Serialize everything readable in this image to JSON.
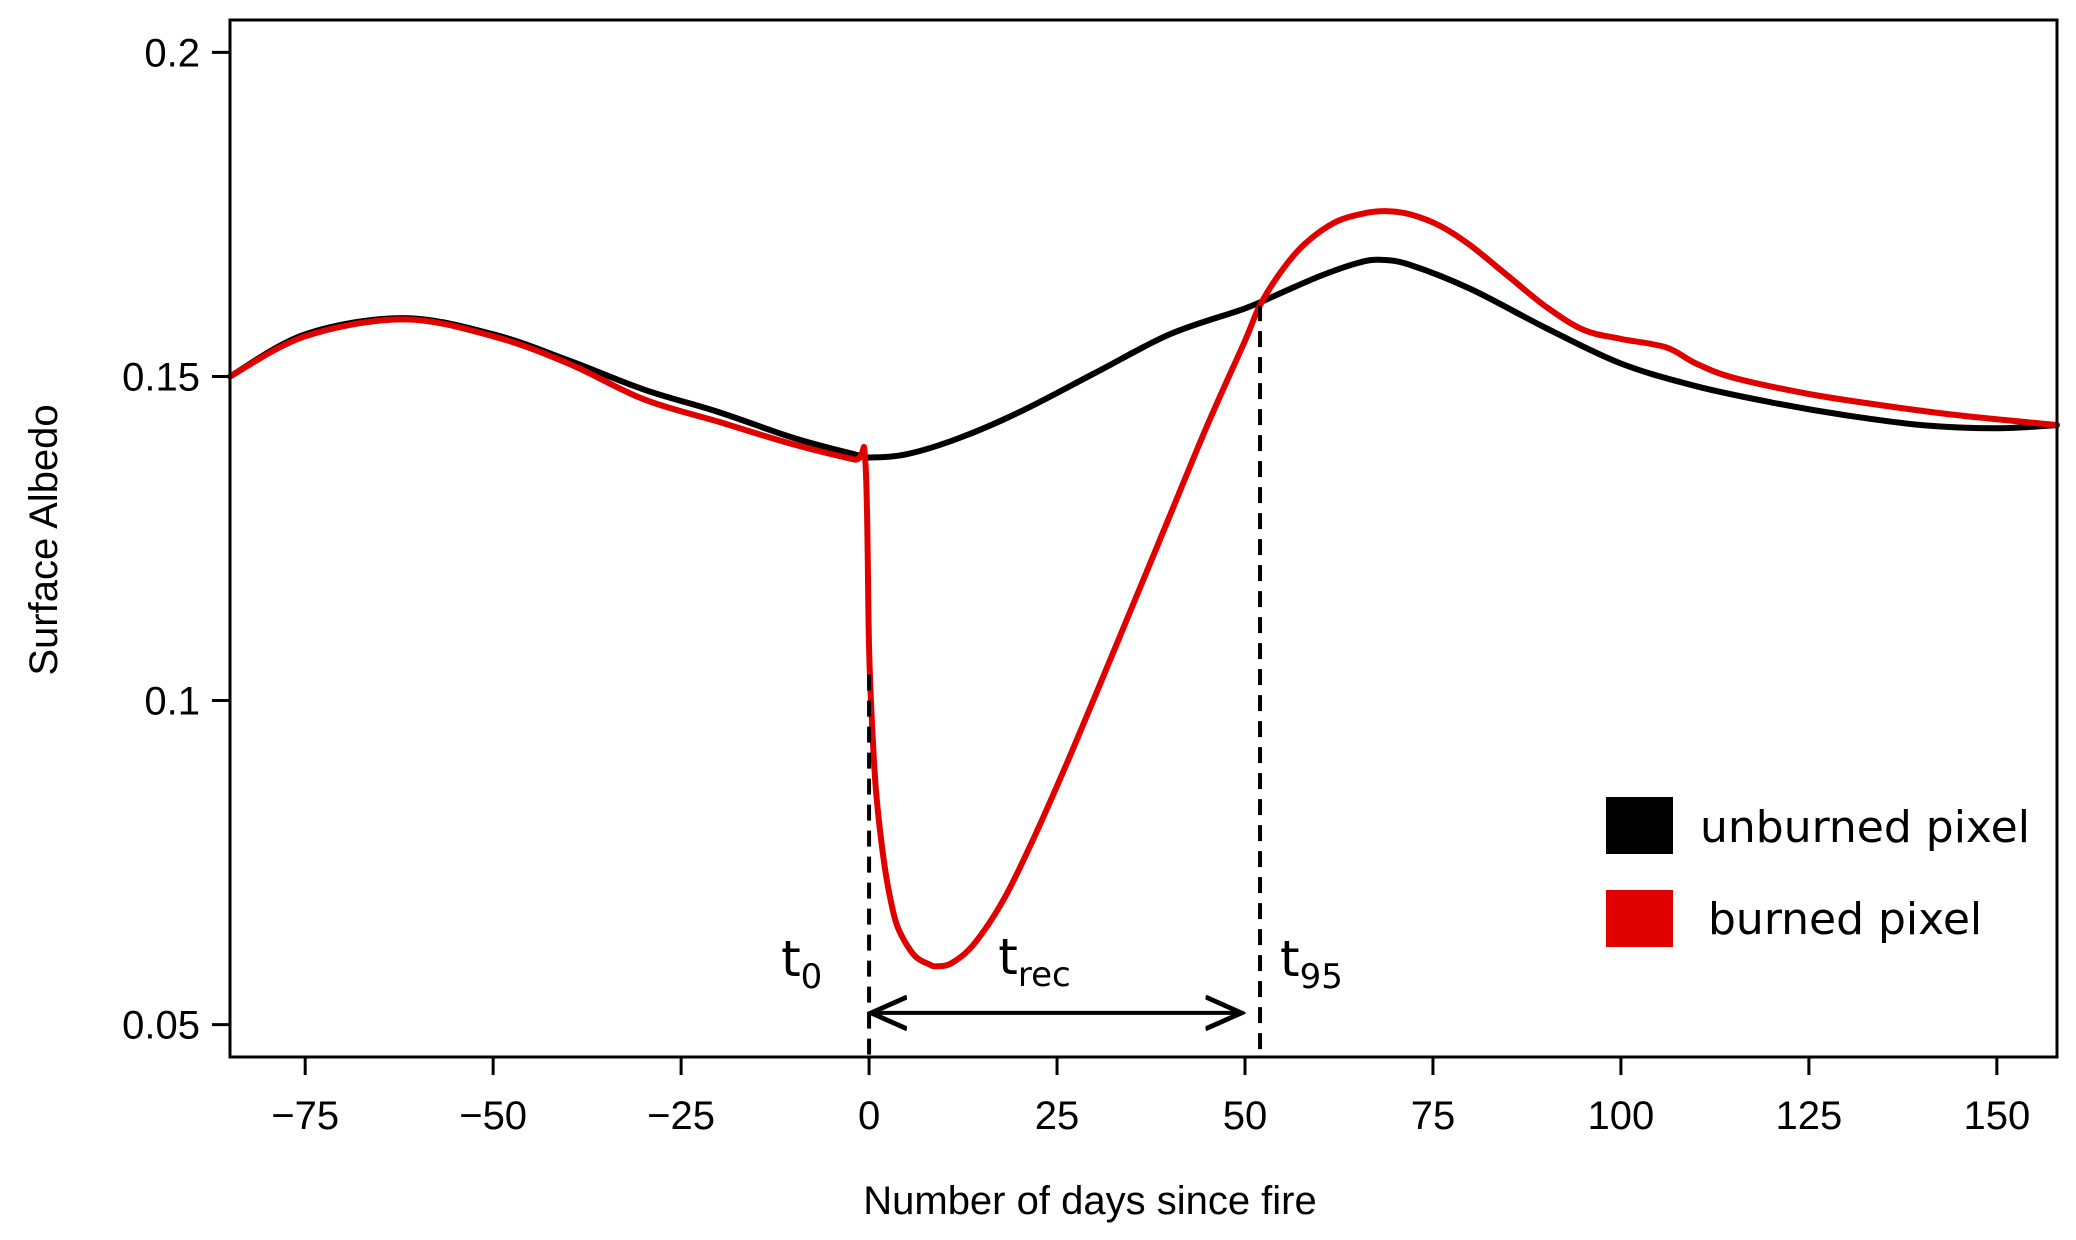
{
  "chart_data": {
    "type": "line",
    "xlabel": "Number of days since fire",
    "ylabel": "Surface Albedo",
    "xlim": [
      -85,
      158
    ],
    "ylim": [
      0.045,
      0.205
    ],
    "x_ticks": [
      -75,
      -50,
      -25,
      0,
      25,
      50,
      75,
      100,
      125,
      150
    ],
    "x_tick_labels": [
      "−75",
      "−50",
      "−25",
      "0",
      "25",
      "50",
      "75",
      "100",
      "125",
      "150"
    ],
    "y_ticks": [
      0.05,
      0.1,
      0.15,
      0.2
    ],
    "y_tick_labels": [
      "0.05",
      "0.1",
      "0.15",
      "0.2"
    ],
    "legend_position": "bottom-right",
    "series": [
      {
        "name": "unburned pixel",
        "color": "#000000",
        "x": [
          -85,
          -75,
          -62,
          -50,
          -40,
          -30,
          -20,
          -10,
          -2,
          0,
          5,
          12,
          20,
          30,
          40,
          50,
          55,
          60,
          65,
          68,
          72,
          80,
          90,
          100,
          110,
          120,
          130,
          140,
          150,
          158
        ],
        "y": [
          0.15,
          0.1565,
          0.159,
          0.1565,
          0.1525,
          0.148,
          0.1445,
          0.1405,
          0.138,
          0.1375,
          0.138,
          0.1405,
          0.1445,
          0.1505,
          0.1565,
          0.1605,
          0.163,
          0.1655,
          0.1675,
          0.168,
          0.1672,
          0.1635,
          0.1575,
          0.152,
          0.1485,
          0.146,
          0.144,
          0.1425,
          0.142,
          0.1425
        ]
      },
      {
        "name": "burned pixel",
        "color": "#e00000",
        "x": [
          -85,
          -75,
          -62,
          -50,
          -40,
          -30,
          -20,
          -10,
          -2,
          -0.5,
          0,
          0.5,
          1,
          2,
          3,
          4,
          6,
          8,
          9,
          11,
          14,
          18,
          22,
          26,
          30,
          35,
          40,
          45,
          50,
          52,
          55,
          58,
          62,
          66,
          69,
          72,
          76,
          80,
          85,
          90,
          95,
          100,
          106,
          110,
          115,
          125,
          135,
          145,
          158
        ],
        "y": [
          0.15,
          0.1562,
          0.1588,
          0.1562,
          0.152,
          0.1465,
          0.143,
          0.1395,
          0.1372,
          0.137,
          0.108,
          0.094,
          0.085,
          0.075,
          0.0685,
          0.0645,
          0.0607,
          0.0593,
          0.059,
          0.0595,
          0.0625,
          0.0695,
          0.079,
          0.0895,
          0.1005,
          0.1145,
          0.1285,
          0.1425,
          0.1555,
          0.161,
          0.1665,
          0.1705,
          0.1738,
          0.1752,
          0.1755,
          0.175,
          0.1732,
          0.1702,
          0.1655,
          0.1608,
          0.1572,
          0.1558,
          0.1545,
          0.152,
          0.1498,
          0.1473,
          0.1455,
          0.144,
          0.1425
        ]
      }
    ],
    "annotations": {
      "t0": {
        "main": "t",
        "sub": "0",
        "x": 0
      },
      "trec": {
        "main": "t",
        "sub": "rec",
        "from": 0,
        "to": 49
      },
      "t95": {
        "main": "t",
        "sub": "95",
        "x": 52
      }
    }
  }
}
